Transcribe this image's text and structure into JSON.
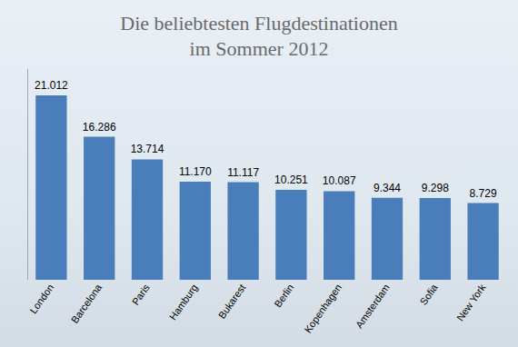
{
  "chart_data": {
    "type": "bar",
    "title": "Die beliebtesten Flugdestinationen\nim Sommer 2012",
    "categories": [
      "London",
      "Barcelona",
      "Paris",
      "Hamburg",
      "Bukarest",
      "Berlin",
      "Kopenhagen",
      "Amsterdam",
      "Sofia",
      "New York"
    ],
    "values": [
      21012,
      16286,
      13714,
      11170,
      11117,
      10251,
      10087,
      9344,
      9298,
      8729
    ],
    "value_labels": [
      "21.012",
      "16.286",
      "13.714",
      "11.170",
      "11.117",
      "10.251",
      "10.087",
      "9.344",
      "9.298",
      "8.729"
    ],
    "color": "#4a7ebb",
    "ylim": [
      0,
      24000
    ],
    "grid": false,
    "data_labels": true,
    "tick_labels": "x"
  }
}
